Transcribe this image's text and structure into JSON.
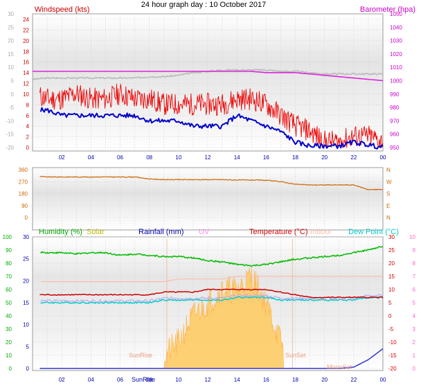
{
  "title": "24 hour graph day : 10 October 2017",
  "chart_data": [
    {
      "type": "line",
      "panel": "wind-baro",
      "labels": {
        "windspeed": "Windspeed (kts)",
        "barometer": "Barometer (hpa)"
      },
      "x_ticks": [
        "02",
        "04",
        "06",
        "08",
        "10",
        "12",
        "14",
        "16",
        "18",
        "20",
        "22",
        "00"
      ],
      "y_left_outer": [
        "30",
        "25",
        "20",
        "15",
        "10",
        "5",
        "0",
        "-5",
        "-10",
        "-15",
        "-20"
      ],
      "y_left_inner": [
        "24",
        "22",
        "20",
        "18",
        "16",
        "14",
        "12",
        "10",
        "8",
        "6",
        "4",
        "2",
        "0"
      ],
      "y_right": [
        "1050",
        "1040",
        "1030",
        "1020",
        "1010",
        "1000",
        "990",
        "980",
        "970",
        "960",
        "950"
      ],
      "x": [
        0,
        1,
        2,
        3,
        4,
        5,
        6,
        7,
        8,
        9,
        10,
        11,
        12,
        13,
        14,
        15,
        16,
        17,
        18,
        19,
        20,
        21,
        22,
        23,
        24
      ],
      "series": [
        {
          "name": "gust",
          "values": [
            10,
            9,
            9,
            10,
            9,
            9,
            10,
            9,
            9,
            8,
            8,
            8,
            8,
            8,
            9,
            9,
            8,
            6,
            4,
            3,
            1,
            1,
            2,
            2,
            1
          ]
        },
        {
          "name": "speed",
          "values": [
            7,
            7,
            6,
            6,
            6,
            6,
            6,
            6,
            5,
            5,
            5,
            4,
            4,
            4,
            6,
            5,
            4,
            3,
            1,
            0.3,
            0.3,
            0.3,
            1,
            0.5,
            0
          ]
        },
        {
          "name": "barometer",
          "values": [
            1007,
            1007,
            1007,
            1007,
            1007,
            1007,
            1007,
            1007,
            1007,
            1007,
            1007,
            1007,
            1007,
            1007,
            1007,
            1007,
            1006,
            1006,
            1006,
            1005,
            1004,
            1003,
            1002,
            1001,
            1000
          ]
        },
        {
          "name": "grey",
          "values": [
            1001,
            1002,
            1002,
            1002,
            1002,
            1002,
            1002,
            1002,
            1003,
            1003,
            1004,
            1006,
            1007,
            1008,
            1008,
            1008,
            1008,
            1007,
            1007,
            1006,
            1005,
            1005,
            1005,
            1005,
            1005
          ]
        }
      ]
    },
    {
      "type": "line",
      "panel": "direction",
      "x_ticks": [],
      "y_left": [
        "360",
        "270",
        "180",
        "90",
        "0"
      ],
      "y_right": [
        "N",
        "W",
        "S",
        "E",
        "N"
      ],
      "x": [
        0,
        1,
        2,
        3,
        4,
        5,
        6,
        7,
        8,
        9,
        10,
        11,
        12,
        13,
        14,
        15,
        16,
        17,
        18,
        19,
        20,
        21,
        22,
        23,
        24
      ],
      "series": [
        {
          "name": "direction",
          "values": [
            310,
            305,
            305,
            305,
            305,
            305,
            305,
            305,
            290,
            285,
            285,
            285,
            285,
            285,
            282,
            282,
            280,
            270,
            250,
            245,
            245,
            245,
            245,
            210,
            210
          ]
        }
      ]
    },
    {
      "type": "line",
      "panel": "temp-hum",
      "labels": {
        "humidity": "Humidity (%)",
        "solar": "Solar",
        "rainfall": "Rainfall (mm)",
        "uv": "UV",
        "temperature": "Temperature (°C)",
        "indoor": "Indoor",
        "dewpoint": "Dew Point (°C)"
      },
      "markers": {
        "sunrise": "SunRise",
        "sunset": "SunSet",
        "moonset": "MoonSet"
      },
      "x_ticks": [
        "02",
        "04",
        "06",
        "08",
        "10",
        "12",
        "14",
        "16",
        "18",
        "20",
        "22",
        "00"
      ],
      "sunrise_tick": "SunRise",
      "y_left_outer": [
        "100",
        "90",
        "80",
        "70",
        "60",
        "50",
        "40",
        "30",
        "20",
        "10",
        "0"
      ],
      "y_left_inner": [
        "30",
        "25",
        "20",
        "15",
        "10",
        "5",
        "0"
      ],
      "y_right_outer": [
        "10",
        "9",
        "8",
        "7",
        "6",
        "5",
        "4",
        "3",
        "2",
        "1",
        "0"
      ],
      "y_right_inner": [
        "30",
        "25",
        "20",
        "15",
        "10",
        "5",
        "0",
        "-5",
        "-10",
        "-15",
        "-20"
      ],
      "x": [
        0,
        1,
        2,
        3,
        4,
        5,
        6,
        7,
        8,
        9,
        10,
        11,
        12,
        13,
        14,
        15,
        16,
        17,
        18,
        19,
        20,
        21,
        22,
        23,
        24
      ],
      "series": [
        {
          "name": "humidity",
          "values": [
            89,
            88,
            88,
            87,
            88,
            88,
            86,
            87,
            86,
            85,
            85,
            84,
            82,
            81,
            79,
            78,
            79,
            81,
            83,
            84,
            85,
            86,
            88,
            90,
            93
          ]
        },
        {
          "name": "temperature",
          "values": [
            8,
            8,
            8,
            8,
            8,
            8,
            8,
            8,
            8,
            9,
            9,
            9,
            10,
            10,
            10,
            10,
            10,
            9,
            8,
            7,
            7,
            7,
            7,
            7,
            7
          ]
        },
        {
          "name": "dewpoint",
          "values": [
            5,
            5,
            5,
            5,
            5,
            5,
            5,
            5,
            5,
            6,
            6,
            6,
            6,
            6,
            7,
            7,
            7,
            6,
            6,
            6,
            6,
            6,
            6,
            7,
            7
          ]
        },
        {
          "name": "indoor",
          "values": [
            13,
            13,
            13,
            13,
            13,
            13,
            13,
            13,
            13,
            13,
            14,
            14,
            14,
            14,
            15,
            15,
            15,
            15,
            15,
            15,
            15,
            15,
            15,
            15,
            15
          ]
        },
        {
          "name": "solar",
          "values": [
            0,
            0,
            0,
            0,
            0,
            0,
            0,
            0,
            0,
            1,
            2,
            4,
            5,
            6,
            6,
            7,
            5,
            2,
            0,
            0,
            0,
            0,
            0,
            0,
            0
          ]
        },
        {
          "name": "rainfall",
          "values": [
            0,
            0,
            0,
            0,
            0,
            0,
            0,
            0,
            0,
            0,
            0,
            0,
            0,
            0,
            0,
            0,
            0,
            0,
            0,
            0,
            0,
            0,
            0.3,
            2,
            4.5
          ]
        }
      ]
    }
  ],
  "colors": {
    "wind_label": "#cc0000",
    "baro_label": "#cc00cc",
    "humidity": "#00aa00",
    "solar": "#bbbb00",
    "rainfall": "#0000aa",
    "uv": "#ff88ff",
    "temperature": "#cc0000",
    "indoor": "#ffbbaa",
    "dewpoint": "#00cccc"
  }
}
